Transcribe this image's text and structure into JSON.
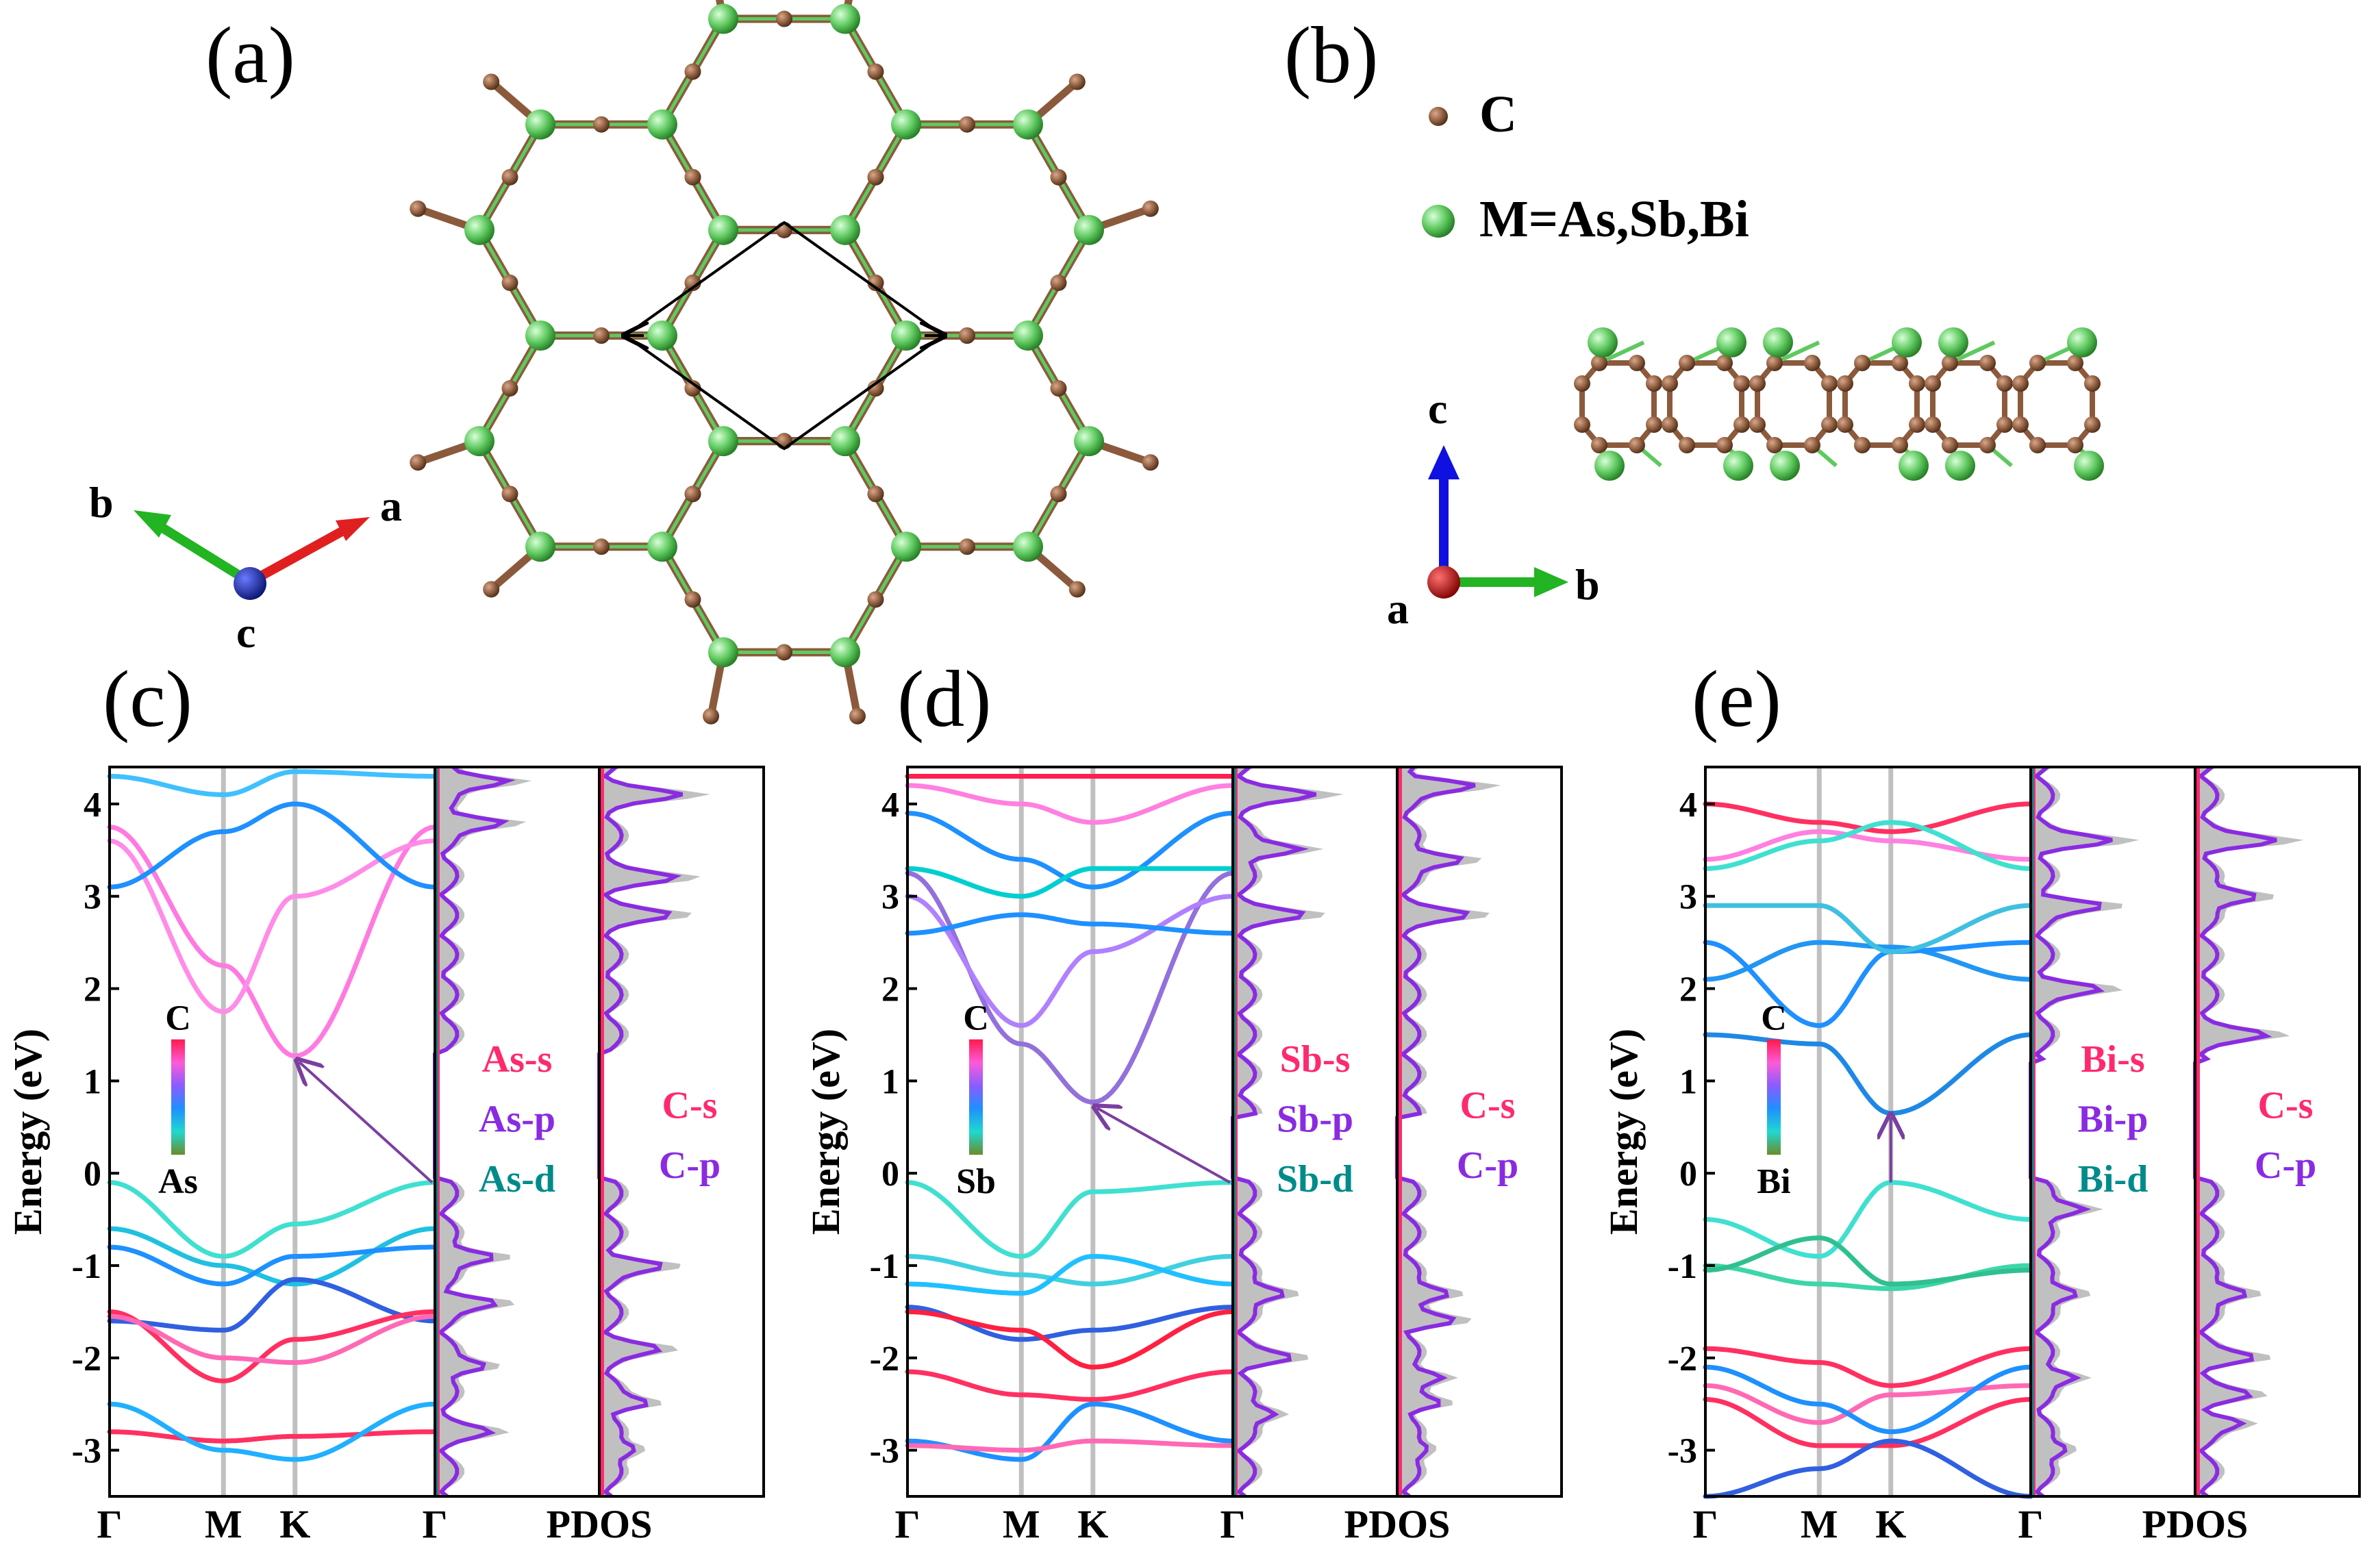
{
  "figure": {
    "panel_labels": [
      "(a)",
      "(b)",
      "(c)",
      "(d)",
      "(e)"
    ],
    "legend_atoms": {
      "C_label": "C",
      "M_label": "M=As,Sb,Bi"
    },
    "axes_a": {
      "a": "a",
      "b": "b",
      "c": "c"
    },
    "axes_b": {
      "a": "a",
      "b": "b",
      "c": "c"
    },
    "colors": {
      "carbon": "#8b5a3c",
      "metal": "#5fc95f",
      "s": "#ff2a6e",
      "p": "#8a2be2",
      "d": "#008b8b",
      "pdos_fill": "#c0c0c0",
      "arrow": "#7b3fa0"
    }
  },
  "chart_data": [
    {
      "type": "line",
      "panel": "(c)",
      "element": "As",
      "title": "",
      "xlabel": "",
      "ylabel": "Energy (eV)",
      "ylim": [
        -3.5,
        4.4
      ],
      "yticks": [
        "4",
        "3",
        "2",
        "1",
        "0",
        "-1",
        "-2",
        "-3"
      ],
      "kpath": [
        "Γ",
        "M",
        "K",
        "Γ"
      ],
      "pdos_label": "PDOS",
      "colorbar": {
        "top": "C",
        "bottom": "As"
      },
      "pdos_legend_metal": [
        "As-s",
        "As-p",
        "As-d"
      ],
      "pdos_legend_carbon": [
        "C-s",
        "C-p"
      ],
      "gap_arrow": {
        "from": [
          "Γ",
          -0.1
        ],
        "to": [
          "K",
          1.25
        ]
      },
      "bands": [
        {
          "color": "#ff7ae0",
          "values": [
            3.75,
            2.25,
            1.27,
            3.75
          ]
        },
        {
          "color": "#ff8ce8",
          "values": [
            3.6,
            1.75,
            3.0,
            3.6
          ]
        },
        {
          "color": "#1e90ff",
          "values": [
            3.1,
            3.7,
            4.0,
            3.1
          ]
        },
        {
          "color": "#40c0ff",
          "values": [
            4.3,
            4.1,
            4.35,
            4.3
          ]
        },
        {
          "color": "#40e0d0",
          "values": [
            -0.1,
            -0.9,
            -0.55,
            -0.1
          ]
        },
        {
          "color": "#20c0e0",
          "values": [
            -0.6,
            -1.0,
            -1.2,
            -0.6
          ]
        },
        {
          "color": "#1e90ff",
          "values": [
            -0.8,
            -1.2,
            -0.9,
            -0.8
          ]
        },
        {
          "color": "#3060e0",
          "values": [
            -1.6,
            -1.7,
            -1.15,
            -1.6
          ]
        },
        {
          "color": "#ff3060",
          "values": [
            -1.5,
            -2.25,
            -1.8,
            -1.5
          ]
        },
        {
          "color": "#ff69b4",
          "values": [
            -1.55,
            -2.0,
            -2.05,
            -1.55
          ]
        },
        {
          "color": "#ff3060",
          "values": [
            -2.8,
            -2.9,
            -2.85,
            -2.8
          ]
        },
        {
          "color": "#20b0ff",
          "values": [
            -2.5,
            -3.0,
            -3.1,
            -2.5
          ]
        }
      ],
      "pdos_metal_peaks": [
        4.25,
        3.8,
        -0.9,
        -1.4,
        -2.1,
        -2.8
      ],
      "pdos_carbon_peaks": [
        4.1,
        3.2,
        2.8,
        -1.0,
        -1.9,
        -2.5,
        -3.0
      ]
    },
    {
      "type": "line",
      "panel": "(d)",
      "element": "Sb",
      "title": "",
      "xlabel": "",
      "ylabel": "Energy (eV)",
      "ylim": [
        -3.5,
        4.4
      ],
      "yticks": [
        "4",
        "3",
        "2",
        "1",
        "0",
        "-1",
        "-2",
        "-3"
      ],
      "kpath": [
        "Γ",
        "M",
        "K",
        "Γ"
      ],
      "pdos_label": "PDOS",
      "colorbar": {
        "top": "C",
        "bottom": "Sb"
      },
      "pdos_legend_metal": [
        "Sb-s",
        "Sb-p",
        "Sb-d"
      ],
      "pdos_legend_carbon": [
        "C-s",
        "C-p"
      ],
      "gap_arrow": {
        "from": [
          "Γ",
          -0.1
        ],
        "to": [
          "K",
          0.75
        ]
      },
      "bands": [
        {
          "color": "#9370db",
          "values": [
            3.25,
            1.4,
            0.77,
            3.25
          ]
        },
        {
          "color": "#b080ff",
          "values": [
            3.0,
            1.6,
            2.4,
            3.0
          ]
        },
        {
          "color": "#ff80e0",
          "values": [
            4.2,
            4.0,
            3.8,
            4.2
          ]
        },
        {
          "color": "#ff2050",
          "values": [
            4.3,
            4.3,
            4.3,
            4.3
          ]
        },
        {
          "color": "#1e90ff",
          "values": [
            2.6,
            2.8,
            2.7,
            2.6
          ]
        },
        {
          "color": "#1e90ff",
          "values": [
            3.9,
            3.4,
            3.1,
            3.9
          ]
        },
        {
          "color": "#00ced1",
          "values": [
            3.3,
            3.0,
            3.3,
            3.3
          ]
        },
        {
          "color": "#40e0d0",
          "values": [
            -0.1,
            -0.9,
            -0.2,
            -0.1
          ]
        },
        {
          "color": "#40d0e0",
          "values": [
            -0.9,
            -1.1,
            -1.2,
            -0.9
          ]
        },
        {
          "color": "#20c0ff",
          "values": [
            -1.2,
            -1.3,
            -0.9,
            -1.2
          ]
        },
        {
          "color": "#3060e0",
          "values": [
            -1.45,
            -1.8,
            -1.7,
            -1.45
          ]
        },
        {
          "color": "#ff2040",
          "values": [
            -1.5,
            -1.7,
            -2.1,
            -1.5
          ]
        },
        {
          "color": "#ff3060",
          "values": [
            -2.15,
            -2.4,
            -2.45,
            -2.15
          ]
        },
        {
          "color": "#1e90ff",
          "values": [
            -2.9,
            -3.1,
            -2.5,
            -2.9
          ]
        },
        {
          "color": "#ff69b4",
          "values": [
            -2.95,
            -3.0,
            -2.9,
            -2.95
          ]
        }
      ],
      "pdos_metal_peaks": [
        4.1,
        3.5,
        2.8,
        -1.3,
        -2.0,
        -2.6
      ],
      "pdos_carbon_peaks": [
        4.2,
        3.4,
        2.8,
        -1.3,
        -1.6,
        -2.2,
        -2.5,
        -3.0
      ]
    },
    {
      "type": "line",
      "panel": "(e)",
      "element": "Bi",
      "title": "",
      "xlabel": "",
      "ylabel": "Energy (eV)",
      "ylim": [
        -3.5,
        4.4
      ],
      "yticks": [
        "4",
        "3",
        "2",
        "1",
        "0",
        "-1",
        "-2",
        "-3"
      ],
      "kpath": [
        "Γ",
        "M",
        "K",
        "Γ"
      ],
      "pdos_label": "PDOS",
      "colorbar": {
        "top": "C",
        "bottom": "Bi"
      },
      "pdos_legend_metal": [
        "Bi-s",
        "Bi-p",
        "Bi-d"
      ],
      "pdos_legend_carbon": [
        "C-s",
        "C-p"
      ],
      "gap_arrow": {
        "from": [
          "K",
          -0.1
        ],
        "to": [
          "K",
          0.65
        ]
      },
      "bands": [
        {
          "color": "#1e88e5",
          "values": [
            1.5,
            1.4,
            0.65,
            1.5
          ]
        },
        {
          "color": "#2196f3",
          "values": [
            2.1,
            2.5,
            2.45,
            2.1
          ]
        },
        {
          "color": "#1e90ff",
          "values": [
            2.5,
            1.6,
            2.4,
            2.5
          ]
        },
        {
          "color": "#40c0e0",
          "values": [
            2.9,
            2.9,
            2.4,
            2.9
          ]
        },
        {
          "color": "#ff3060",
          "values": [
            4.0,
            3.8,
            3.7,
            4.0
          ]
        },
        {
          "color": "#ff80e0",
          "values": [
            3.4,
            3.7,
            3.6,
            3.4
          ]
        },
        {
          "color": "#40e0d0",
          "values": [
            3.3,
            3.6,
            3.8,
            3.3
          ]
        },
        {
          "color": "#40e0d0",
          "values": [
            -0.5,
            -0.9,
            -0.1,
            -0.5
          ]
        },
        {
          "color": "#3dd6a8",
          "values": [
            -1.0,
            -1.2,
            -1.25,
            -1.0
          ]
        },
        {
          "color": "#30c090",
          "values": [
            -1.05,
            -0.7,
            -1.2,
            -1.05
          ]
        },
        {
          "color": "#ff3060",
          "values": [
            -1.9,
            -2.05,
            -2.3,
            -1.9
          ]
        },
        {
          "color": "#ff69b4",
          "values": [
            -2.3,
            -2.7,
            -2.4,
            -2.3
          ]
        },
        {
          "color": "#1e90ff",
          "values": [
            -2.1,
            -2.5,
            -2.8,
            -2.1
          ]
        },
        {
          "color": "#ff3060",
          "values": [
            -2.45,
            -2.95,
            -2.95,
            -2.45
          ]
        },
        {
          "color": "#3060e0",
          "values": [
            -3.5,
            -3.2,
            -2.9,
            -3.5
          ]
        }
      ],
      "pdos_metal_peaks": [
        3.6,
        2.9,
        2.0,
        -0.4,
        -1.3,
        -2.2,
        -3.0
      ],
      "pdos_carbon_peaks": [
        3.6,
        3.0,
        1.5,
        -1.3,
        -2.0,
        -2.4,
        -2.7
      ]
    }
  ]
}
